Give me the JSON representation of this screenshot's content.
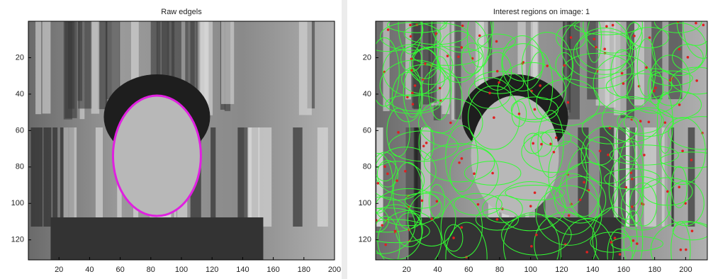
{
  "panels": [
    {
      "title": "Raw edgels",
      "xlim": [
        0,
        200
      ],
      "ylim": [
        0,
        131
      ],
      "xticks": [
        20,
        40,
        60,
        80,
        100,
        120,
        140,
        160,
        180,
        200
      ],
      "yticks": [
        20,
        40,
        60,
        80,
        100,
        120
      ]
    },
    {
      "title": "Interest regions on image: 1",
      "xlim": [
        0,
        214
      ],
      "ylim": [
        0,
        131
      ],
      "xticks": [
        20,
        40,
        60,
        80,
        100,
        120,
        140,
        160,
        180,
        200
      ],
      "yticks": [
        20,
        40,
        60,
        80,
        100,
        120
      ]
    }
  ]
}
